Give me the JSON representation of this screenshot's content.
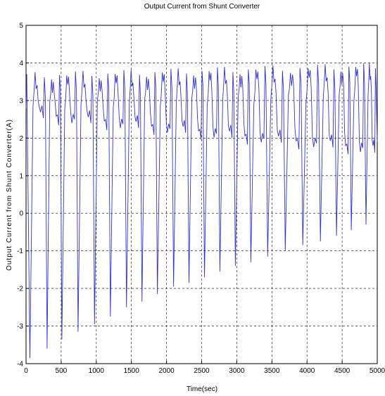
{
  "chart_data": {
    "type": "line",
    "title": "Output Current from Shunt Converter",
    "xlabel": "Time(sec)",
    "ylabel": "Output Current from Shunt Converter(A)",
    "xlim": [
      0,
      5000
    ],
    "ylim": [
      -4,
      5
    ],
    "xticks": [
      0,
      500,
      1000,
      1500,
      2000,
      2500,
      3000,
      3500,
      4000,
      4500,
      5000
    ],
    "yticks": [
      -4,
      -3,
      -2,
      -1,
      0,
      1,
      2,
      3,
      4,
      5
    ],
    "grid": true,
    "line_color": "#3333cc",
    "series": [
      {
        "cycles": [
          {
            "trough_x": 55,
            "trough_y": -3.85
          },
          {
            "trough_x": 300,
            "trough_y": -3.6
          },
          {
            "trough_x": 510,
            "trough_y": -3.35
          },
          {
            "trough_x": 740,
            "trough_y": -3.15
          },
          {
            "trough_x": 975,
            "trough_y": -2.95
          },
          {
            "trough_x": 1200,
            "trough_y": -2.75
          },
          {
            "trough_x": 1430,
            "trough_y": -2.5
          },
          {
            "trough_x": 1650,
            "trough_y": -2.35
          },
          {
            "trough_x": 1870,
            "trough_y": -2.15
          },
          {
            "trough_x": 2100,
            "trough_y": -1.95
          },
          {
            "trough_x": 2320,
            "trough_y": -1.85
          },
          {
            "trough_x": 2540,
            "trough_y": -1.7
          },
          {
            "trough_x": 2760,
            "trough_y": -1.55
          },
          {
            "trough_x": 2980,
            "trough_y": -1.4
          },
          {
            "trough_x": 3200,
            "trough_y": -1.3
          },
          {
            "trough_x": 3440,
            "trough_y": -1.15
          },
          {
            "trough_x": 3690,
            "trough_y": -1.0
          },
          {
            "trough_x": 3940,
            "trough_y": -0.85
          },
          {
            "trough_x": 4190,
            "trough_y": -0.75
          },
          {
            "trough_x": 4420,
            "trough_y": -0.6
          },
          {
            "trough_x": 4630,
            "trough_y": -0.45
          },
          {
            "trough_x": 4840,
            "trough_y": -0.3
          }
        ],
        "peak_start": 3.75,
        "peak_end": 4.0,
        "shoulder_start": 2.6,
        "shoulder_end": 1.7
      }
    ]
  }
}
